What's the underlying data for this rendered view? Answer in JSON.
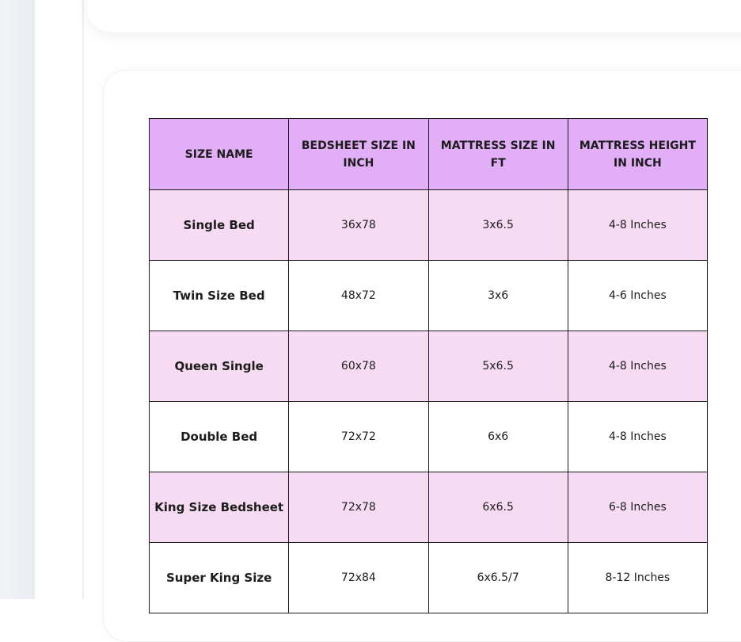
{
  "table": {
    "headers": [
      "SIZE NAME",
      "BEDSHEET SIZE IN INCH",
      "MATTRESS SIZE IN FT",
      "MATTRESS HEIGHT IN INCH"
    ],
    "rows": [
      [
        "Single Bed",
        "36x78",
        "3x6.5",
        "4-8 Inches"
      ],
      [
        "Twin Size Bed",
        "48x72",
        "3x6",
        "4-6 Inches"
      ],
      [
        "Queen Single",
        "60x78",
        "5x6.5",
        "4-8 Inches"
      ],
      [
        "Double Bed",
        "72x72",
        "6x6",
        "4-8 Inches"
      ],
      [
        "King Size Bedsheet",
        "72x78",
        "6x6.5",
        "6-8 Inches"
      ],
      [
        "Super King Size",
        "72x84",
        "6x6.5/7",
        "8-12 Inches"
      ]
    ],
    "colors": {
      "header": "#e2aef7",
      "stripe": "#f7dbf2"
    }
  }
}
